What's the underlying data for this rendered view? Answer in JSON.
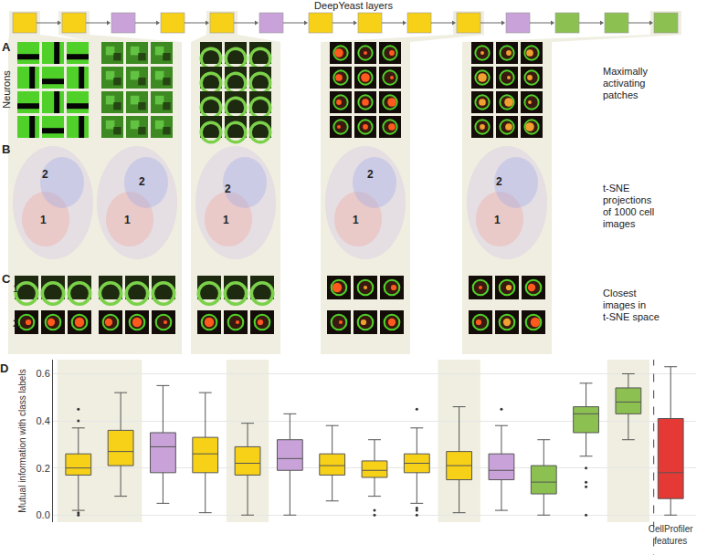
{
  "diagram": {
    "title": "DeepYeast layers",
    "layer_colors": [
      "#f7d117",
      "#f7d117",
      "#c8a2d8",
      "#f7d117",
      "#f7d117",
      "#c8a2d8",
      "#f7d117",
      "#f7d117",
      "#f7d117",
      "#f7d117",
      "#c8a2d8",
      "#8cc152",
      "#8cc152",
      "#8cc152"
    ]
  },
  "panels": {
    "A": {
      "label": "A",
      "row_label": "Neurons",
      "caption": "Maximally activating patches"
    },
    "B": {
      "label": "B",
      "caption": "t-SNE projections of 1000 cell images",
      "points": [
        "1",
        "2"
      ]
    },
    "C": {
      "label": "C",
      "caption": "Closest images in t-SNE space",
      "rows": [
        "1.",
        "2."
      ]
    }
  },
  "chart_data": {
    "type": "box",
    "panel_label": "D",
    "y_title": "Mutual information with class labels",
    "categories": [
      null,
      null,
      null,
      null,
      null,
      null,
      null,
      null,
      null,
      null,
      null,
      null,
      null,
      null,
      "CellProfiler features"
    ],
    "colors": [
      "#f7d117",
      "#f7d117",
      "#c8a2d8",
      "#f7d117",
      "#f7d117",
      "#c8a2d8",
      "#f7d117",
      "#f7d117",
      "#f7d117",
      "#f7d117",
      "#c8a2d8",
      "#8cc152",
      "#8cc152",
      "#8cc152",
      "#e53935"
    ],
    "q1": [
      0.17,
      0.21,
      0.18,
      0.18,
      0.17,
      0.19,
      0.17,
      0.16,
      0.18,
      0.15,
      0.15,
      0.09,
      0.35,
      0.43,
      0.07
    ],
    "median": [
      0.2,
      0.27,
      0.29,
      0.26,
      0.22,
      0.24,
      0.21,
      0.19,
      0.22,
      0.21,
      0.19,
      0.14,
      0.43,
      0.48,
      0.18
    ],
    "q3": [
      0.26,
      0.36,
      0.35,
      0.33,
      0.29,
      0.32,
      0.26,
      0.23,
      0.26,
      0.27,
      0.26,
      0.21,
      0.46,
      0.54,
      0.41
    ],
    "lower": [
      0.02,
      0.08,
      0.05,
      0.01,
      0.0,
      0.0,
      0.06,
      0.08,
      0.05,
      0.01,
      0.02,
      0.0,
      0.25,
      0.32,
      0.0
    ],
    "upper": [
      0.37,
      0.52,
      0.55,
      0.52,
      0.39,
      0.43,
      0.38,
      0.32,
      0.37,
      0.46,
      0.38,
      0.32,
      0.56,
      0.6,
      0.63
    ],
    "outliers": [
      [
        0.0,
        0.01,
        0.4,
        0.45
      ],
      [],
      [],
      [],
      [],
      [],
      [],
      [
        0.0,
        0.02
      ],
      [
        0.0,
        0.02,
        0.03,
        0.45
      ],
      [],
      [
        0.45
      ],
      [],
      [
        0.0,
        0.12,
        0.14,
        0.2
      ],
      [],
      []
    ],
    "ylim": [
      -0.03,
      0.66
    ],
    "yticks": [
      {
        "value": 0,
        "label": "0.0"
      },
      {
        "value": 0.2,
        "label": "0.2"
      },
      {
        "value": 0.4,
        "label": "0.4"
      },
      {
        "value": 0.6,
        "label": "0.6"
      }
    ],
    "tick_labels": "y"
  }
}
